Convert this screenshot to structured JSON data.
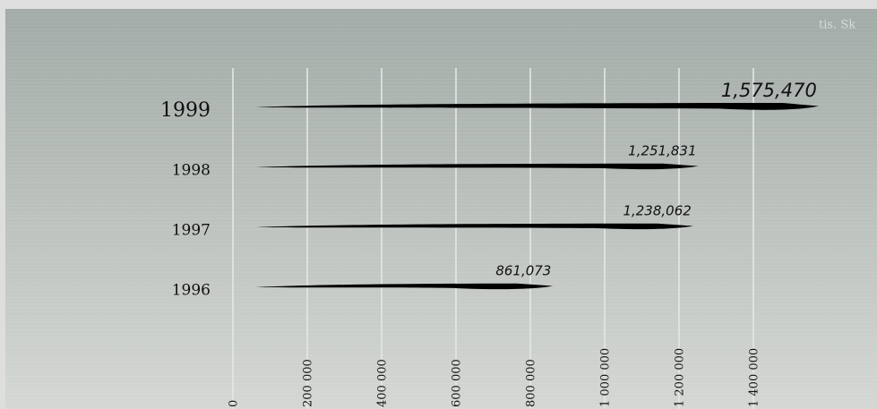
{
  "chart_data": {
    "type": "bar",
    "orientation": "horizontal",
    "unit": "tis. Sk",
    "categories": [
      "1999",
      "1998",
      "1997",
      "1996"
    ],
    "values": [
      1575470,
      1251831,
      1238062,
      861073
    ],
    "value_labels": [
      "1,575,470",
      "1,251,831",
      "1,238,062",
      "861,073"
    ],
    "color": "#000000",
    "xlim": [
      0,
      1600000
    ],
    "xticks": [
      0,
      {
        "value": 200000,
        "label": "200 000"
      },
      {
        "value": 400000,
        "label": "400 000"
      },
      {
        "value": 600000,
        "label": "600 000"
      },
      {
        "value": 800000,
        "label": "800 000"
      },
      {
        "value": 1000000,
        "label": "1 000 000"
      },
      {
        "value": 1200000,
        "label": "1 200 000"
      },
      {
        "value": 1400000,
        "label": "1 400 000"
      }
    ],
    "grid": true
  }
}
